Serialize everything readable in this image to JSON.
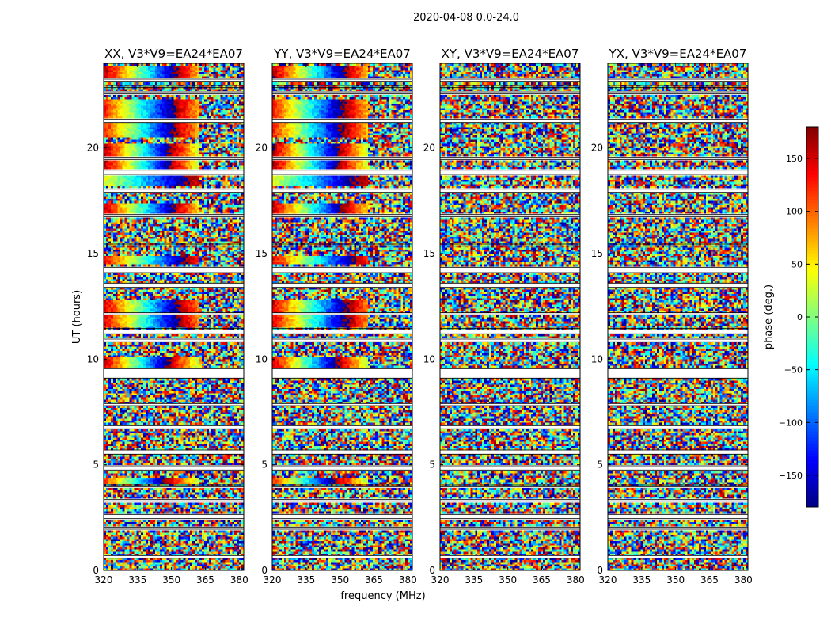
{
  "suptitle": "2020-04-08 0.0-24.0",
  "chart_data": {
    "type": "heatmap",
    "xlabel": "frequency (MHz)",
    "ylabel": "UT (hours)",
    "xlim": [
      320,
      382
    ],
    "ylim": [
      0,
      24
    ],
    "x_ticks": [
      320,
      335,
      350,
      365,
      380
    ],
    "y_ticks": [
      0,
      5,
      10,
      15,
      20
    ],
    "panels": [
      {
        "title": "XX, V3*V9=EA24*EA07",
        "pol": "XX",
        "coherent": true
      },
      {
        "title": "YY, V3*V9=EA24*EA07",
        "pol": "YY",
        "coherent": true
      },
      {
        "title": "XY, V3*V9=EA24*EA07",
        "pol": "XY",
        "coherent": false
      },
      {
        "title": "YX, V3*V9=EA24*EA07",
        "pol": "YX",
        "coherent": false
      }
    ],
    "colorbar": {
      "label": "phase (deg.)",
      "colormap": "jet",
      "vmin": -180,
      "vmax": 180,
      "ticks": [
        -150,
        -100,
        -50,
        0,
        50,
        100,
        150
      ],
      "tick_labels": [
        "−150",
        "−100",
        "−50",
        "0",
        "50",
        "100",
        "150"
      ]
    },
    "flagged_ut_bands": [
      [
        0.55,
        0.7
      ],
      [
        1.95,
        2.05
      ],
      [
        2.45,
        2.65
      ],
      [
        3.25,
        3.35
      ],
      [
        3.95,
        4.05
      ],
      [
        4.75,
        4.95
      ],
      [
        5.5,
        5.7
      ],
      [
        6.7,
        6.85
      ],
      [
        7.8,
        7.9
      ],
      [
        9.1,
        9.55
      ],
      [
        10.85,
        10.95
      ],
      [
        11.2,
        11.45
      ],
      [
        12.1,
        12.2
      ],
      [
        13.4,
        13.6
      ],
      [
        14.1,
        14.35
      ],
      [
        15.35,
        15.45
      ],
      [
        16.75,
        16.85
      ],
      [
        17.9,
        18.05
      ],
      [
        18.75,
        18.95
      ],
      [
        19.45,
        19.55
      ],
      [
        21.2,
        21.35
      ],
      [
        22.55,
        22.65
      ],
      [
        22.85,
        22.95
      ],
      [
        23.15,
        23.25
      ]
    ],
    "coherent_ut_bands": [
      {
        "start": 4.1,
        "end": 4.4,
        "phase_start": 120,
        "slope_deg_per_mhz": -11
      },
      {
        "start": 9.6,
        "end": 10.1,
        "phase_start": 160,
        "slope_deg_per_mhz": -12
      },
      {
        "start": 11.5,
        "end": 12.8,
        "phase_start": 150,
        "slope_deg_per_mhz": -10
      },
      {
        "start": 14.5,
        "end": 14.9,
        "phase_start": 140,
        "slope_deg_per_mhz": -9
      },
      {
        "start": 16.9,
        "end": 17.4,
        "phase_start": 160,
        "slope_deg_per_mhz": -11
      },
      {
        "start": 18.2,
        "end": 18.7,
        "phase_start": 40,
        "slope_deg_per_mhz": -6
      },
      {
        "start": 19.0,
        "end": 20.2,
        "phase_start": 170,
        "slope_deg_per_mhz": -12
      },
      {
        "start": 20.5,
        "end": 22.3,
        "phase_start": 130,
        "slope_deg_per_mhz": -10
      },
      {
        "start": 23.3,
        "end": 23.9,
        "phase_start": 170,
        "slope_deg_per_mhz": -11
      }
    ]
  }
}
